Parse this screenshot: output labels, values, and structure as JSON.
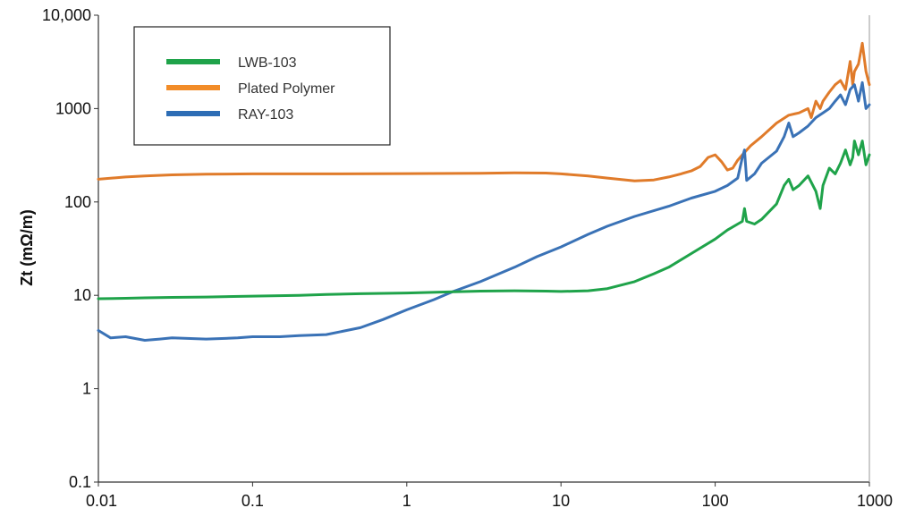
{
  "chart_data": {
    "type": "line",
    "title": "",
    "xlabel": "",
    "ylabel": "Zt (mΩ/m)",
    "x_scale": "log",
    "y_scale": "log",
    "xlim": [
      0.01,
      1000
    ],
    "ylim": [
      0.1,
      10000
    ],
    "x_ticks": [
      0.01,
      0.1,
      1,
      10,
      100,
      1000
    ],
    "x_tick_labels": [
      "0.01",
      "0.1",
      "1",
      "10",
      "100",
      "1000"
    ],
    "y_ticks": [
      0.1,
      1,
      10,
      100,
      1000,
      10000
    ],
    "y_tick_labels": [
      "0.1",
      "1",
      "10",
      "100",
      "1000",
      "10,000"
    ],
    "grid": false,
    "legend_position": "top-left",
    "series": [
      {
        "name": "LWB-103",
        "color": "#1fa34a",
        "points": [
          [
            0.01,
            9.2
          ],
          [
            0.015,
            9.3
          ],
          [
            0.02,
            9.4
          ],
          [
            0.03,
            9.5
          ],
          [
            0.05,
            9.6
          ],
          [
            0.1,
            9.8
          ],
          [
            0.2,
            10.0
          ],
          [
            0.3,
            10.2
          ],
          [
            0.5,
            10.4
          ],
          [
            1,
            10.6
          ],
          [
            2,
            10.9
          ],
          [
            3,
            11.1
          ],
          [
            5,
            11.2
          ],
          [
            8,
            11.1
          ],
          [
            10,
            11.0
          ],
          [
            15,
            11.2
          ],
          [
            20,
            11.8
          ],
          [
            30,
            14
          ],
          [
            40,
            17
          ],
          [
            50,
            20
          ],
          [
            70,
            28
          ],
          [
            100,
            40
          ],
          [
            120,
            50
          ],
          [
            140,
            58
          ],
          [
            150,
            62
          ],
          [
            155,
            85
          ],
          [
            160,
            62
          ],
          [
            180,
            58
          ],
          [
            200,
            65
          ],
          [
            250,
            95
          ],
          [
            280,
            150
          ],
          [
            300,
            175
          ],
          [
            320,
            135
          ],
          [
            350,
            150
          ],
          [
            400,
            190
          ],
          [
            450,
            130
          ],
          [
            480,
            85
          ],
          [
            500,
            150
          ],
          [
            550,
            230
          ],
          [
            600,
            200
          ],
          [
            650,
            260
          ],
          [
            700,
            360
          ],
          [
            750,
            250
          ],
          [
            780,
            300
          ],
          [
            800,
            450
          ],
          [
            850,
            320
          ],
          [
            900,
            450
          ],
          [
            950,
            250
          ],
          [
            1000,
            320
          ]
        ]
      },
      {
        "name": "Plated Polymer",
        "color": "#e07b2a",
        "points": [
          [
            0.01,
            175
          ],
          [
            0.015,
            185
          ],
          [
            0.02,
            190
          ],
          [
            0.03,
            195
          ],
          [
            0.05,
            198
          ],
          [
            0.1,
            200
          ],
          [
            0.3,
            200
          ],
          [
            1,
            201
          ],
          [
            3,
            203
          ],
          [
            5,
            205
          ],
          [
            8,
            204
          ],
          [
            10,
            200
          ],
          [
            15,
            190
          ],
          [
            20,
            180
          ],
          [
            30,
            168
          ],
          [
            40,
            172
          ],
          [
            50,
            185
          ],
          [
            60,
            200
          ],
          [
            70,
            215
          ],
          [
            80,
            240
          ],
          [
            90,
            300
          ],
          [
            100,
            320
          ],
          [
            110,
            270
          ],
          [
            120,
            220
          ],
          [
            130,
            230
          ],
          [
            140,
            280
          ],
          [
            150,
            320
          ],
          [
            170,
            400
          ],
          [
            200,
            500
          ],
          [
            250,
            700
          ],
          [
            300,
            850
          ],
          [
            350,
            900
          ],
          [
            400,
            1000
          ],
          [
            420,
            800
          ],
          [
            450,
            1200
          ],
          [
            480,
            1000
          ],
          [
            500,
            1200
          ],
          [
            550,
            1500
          ],
          [
            600,
            1800
          ],
          [
            650,
            2000
          ],
          [
            700,
            1600
          ],
          [
            750,
            3200
          ],
          [
            780,
            1800
          ],
          [
            800,
            2500
          ],
          [
            850,
            3000
          ],
          [
            900,
            5000
          ],
          [
            950,
            2500
          ],
          [
            1000,
            1800
          ]
        ]
      },
      {
        "name": "RAY-103",
        "color": "#3a72b6",
        "points": [
          [
            0.01,
            4.2
          ],
          [
            0.012,
            3.5
          ],
          [
            0.015,
            3.6
          ],
          [
            0.02,
            3.3
          ],
          [
            0.025,
            3.4
          ],
          [
            0.03,
            3.5
          ],
          [
            0.05,
            3.4
          ],
          [
            0.08,
            3.5
          ],
          [
            0.1,
            3.6
          ],
          [
            0.15,
            3.6
          ],
          [
            0.2,
            3.7
          ],
          [
            0.3,
            3.8
          ],
          [
            0.5,
            4.5
          ],
          [
            0.7,
            5.5
          ],
          [
            1,
            7.0
          ],
          [
            1.5,
            9.0
          ],
          [
            2,
            11
          ],
          [
            3,
            14
          ],
          [
            5,
            20
          ],
          [
            7,
            26
          ],
          [
            10,
            33
          ],
          [
            15,
            45
          ],
          [
            20,
            55
          ],
          [
            30,
            70
          ],
          [
            50,
            90
          ],
          [
            70,
            110
          ],
          [
            100,
            130
          ],
          [
            120,
            150
          ],
          [
            140,
            180
          ],
          [
            150,
            300
          ],
          [
            155,
            360
          ],
          [
            160,
            170
          ],
          [
            180,
            200
          ],
          [
            200,
            260
          ],
          [
            250,
            350
          ],
          [
            280,
            500
          ],
          [
            300,
            700
          ],
          [
            320,
            500
          ],
          [
            350,
            550
          ],
          [
            400,
            650
          ],
          [
            450,
            800
          ],
          [
            500,
            900
          ],
          [
            550,
            1000
          ],
          [
            600,
            1200
          ],
          [
            650,
            1400
          ],
          [
            700,
            1100
          ],
          [
            750,
            1600
          ],
          [
            800,
            1800
          ],
          [
            850,
            1200
          ],
          [
            900,
            1900
          ],
          [
            950,
            1000
          ],
          [
            1000,
            1100
          ]
        ]
      }
    ]
  }
}
